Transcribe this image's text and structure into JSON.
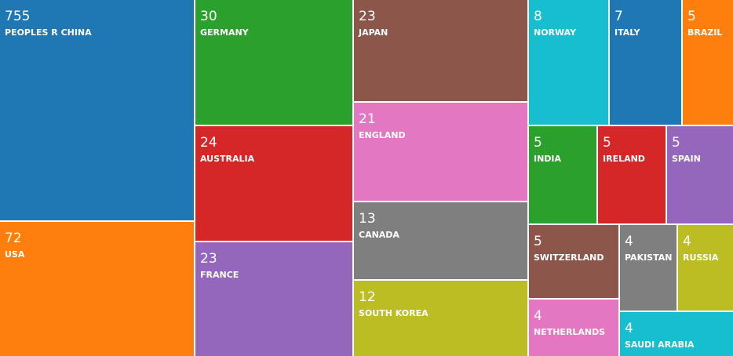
{
  "chart_data": {
    "type": "treemap",
    "categories": [
      "PEOPLES R CHINA",
      "USA",
      "GERMANY",
      "AUSTRALIA",
      "FRANCE",
      "JAPAN",
      "ENGLAND",
      "CANADA",
      "SOUTH KOREA",
      "NORWAY",
      "ITALY",
      "BRAZIL",
      "INDIA",
      "IRELAND",
      "SPAIN",
      "SWITZERLAND",
      "NETHERLANDS",
      "PAKISTAN",
      "RUSSIA",
      "SAUDI ARABIA"
    ],
    "values": [
      755,
      72,
      30,
      24,
      23,
      23,
      21,
      13,
      12,
      8,
      7,
      5,
      5,
      5,
      5,
      5,
      4,
      4,
      4,
      4
    ],
    "colors": [
      "#1f77b4",
      "#ff7f0e",
      "#2ca02c",
      "#d62728",
      "#9467bd",
      "#8c564b",
      "#e377c2",
      "#7f7f7f",
      "#bcbd22",
      "#17becf",
      "#1f77b4",
      "#ff7f0e",
      "#2ca02c",
      "#d62728",
      "#9467bd",
      "#8c564b",
      "#e377c2",
      "#7f7f7f",
      "#bcbd22",
      "#17becf"
    ]
  }
}
